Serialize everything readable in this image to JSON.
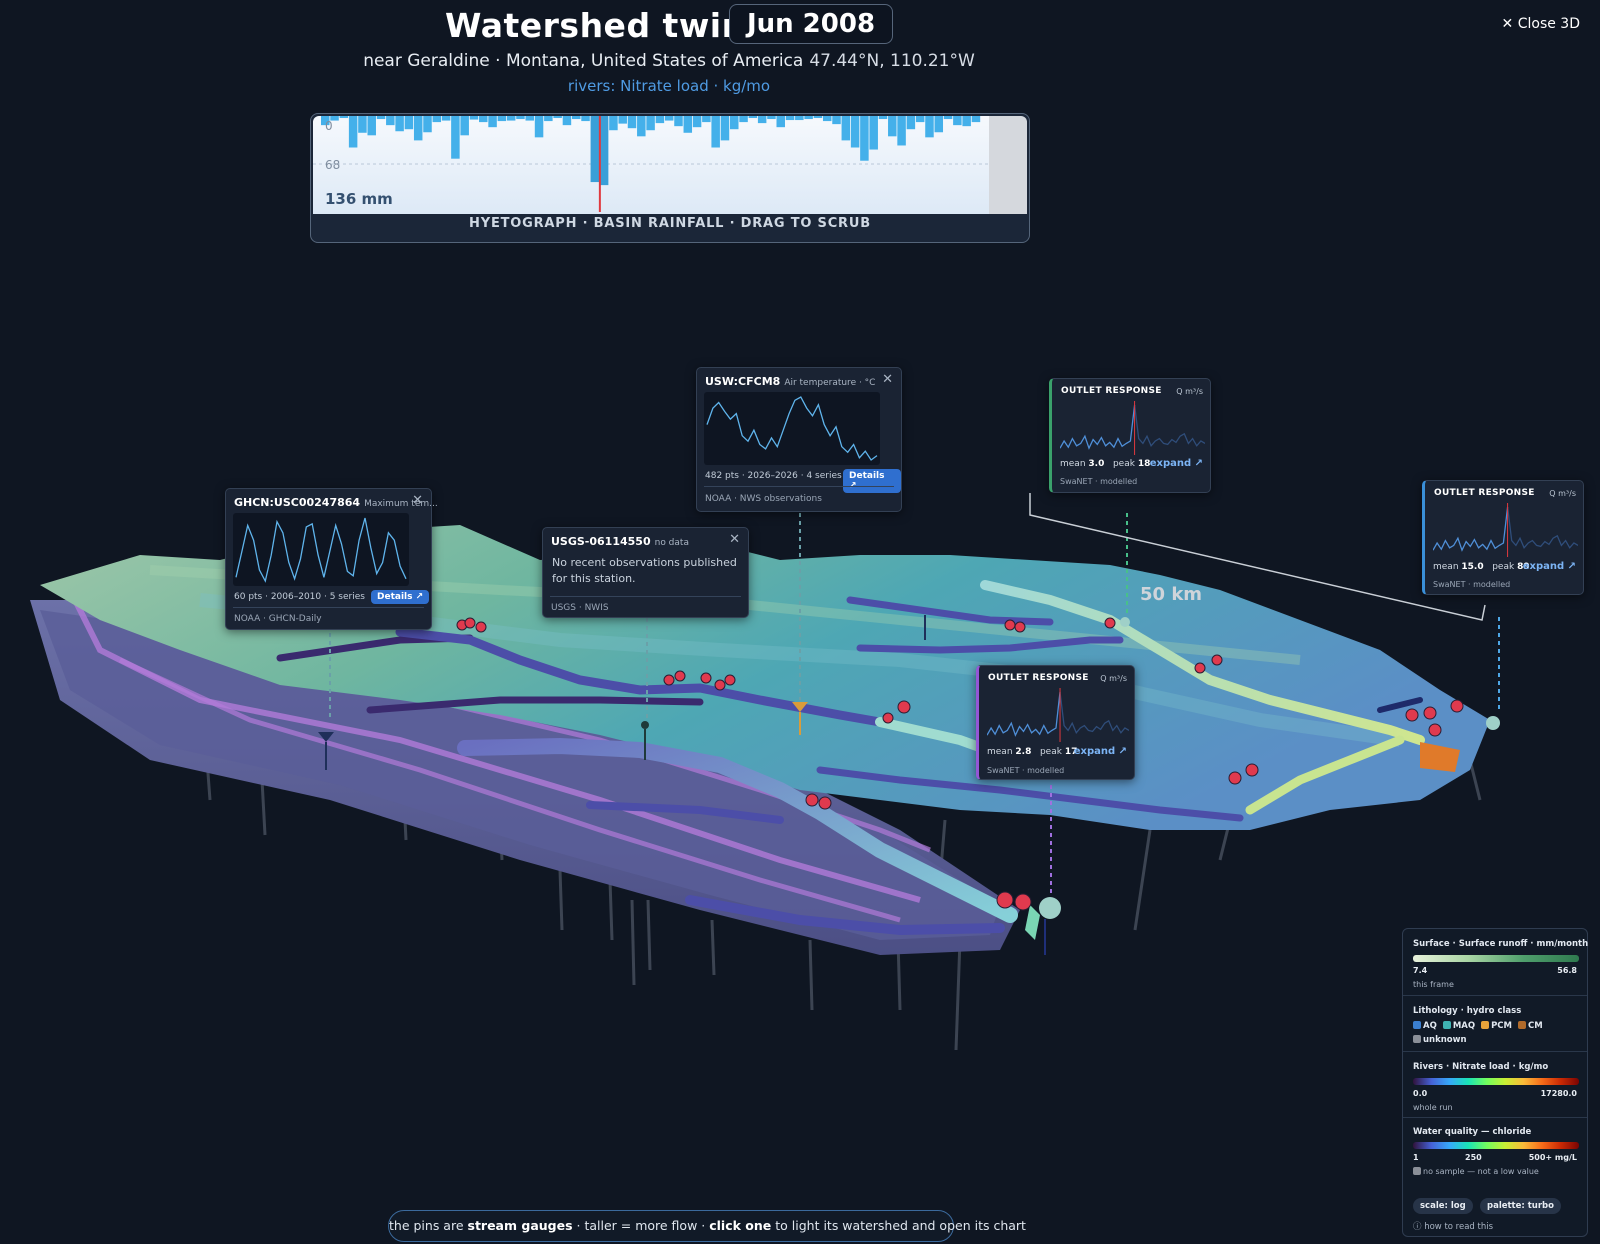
{
  "header": {
    "title": "Watershed twin",
    "date": "Jun 2008",
    "location": "near Geraldine · Montana, United States of America",
    "coords": "47.44°N, 110.21°W",
    "layer": "rivers: Nitrate load · kg/mo",
    "close_label": "✕ Close 3D"
  },
  "hyetograph": {
    "caption": "HYETOGRAPH · BASIN RAINFALL · DRAG TO SCRUB",
    "tick_top": "0",
    "tick_mid": "68",
    "max_label": "136 mm",
    "max_value": 136,
    "current_index": 29,
    "values": [
      18,
      9,
      4,
      62,
      33,
      38,
      6,
      18,
      30,
      26,
      48,
      32,
      12,
      9,
      84,
      38,
      7,
      12,
      22,
      10,
      9,
      6,
      9,
      42,
      10,
      4,
      18,
      6,
      10,
      130,
      136,
      28,
      15,
      24,
      40,
      28,
      14,
      9,
      20,
      33,
      22,
      12,
      62,
      48,
      26,
      12,
      4,
      14,
      6,
      22,
      8,
      8,
      6,
      4,
      10,
      16,
      48,
      62,
      88,
      66,
      6,
      40,
      58,
      26,
      12,
      42,
      32,
      6,
      18,
      20,
      12
    ]
  },
  "gauge_popups": [
    {
      "id": "GHCN:USC00247864",
      "subtitle": "Maximum tem...",
      "stats": "60 pts · 2006–2010 · 5 series",
      "details_label": "Details ↗",
      "source": "NOAA · GHCN-Daily",
      "chart_values": [
        10,
        45,
        80,
        60,
        20,
        5,
        40,
        85,
        70,
        30,
        8,
        35,
        78,
        82,
        40,
        10,
        45,
        80,
        55,
        18,
        12,
        60,
        90,
        50,
        15,
        30,
        70,
        60,
        25,
        8
      ]
    },
    {
      "id": "USGS-06114550",
      "subtitle": "no data",
      "message": "No recent observations published for this station.",
      "source": "USGS · NWIS"
    },
    {
      "id": "USW:CFCM8",
      "subtitle": "Air temperature · °C",
      "stats": "482 pts · 2026–2026 · 4 series",
      "details_label": "Details ↗",
      "source": "NOAA · NWS observations",
      "chart_values": [
        40,
        55,
        60,
        52,
        45,
        50,
        30,
        25,
        35,
        22,
        18,
        28,
        20,
        35,
        50,
        62,
        65,
        55,
        48,
        58,
        40,
        30,
        38,
        20,
        15,
        22,
        10,
        16,
        8,
        12
      ]
    }
  ],
  "outlet_popups": [
    {
      "title": "OUTLET RESPONSE",
      "unit": "Q m³/s",
      "mean": "3.0",
      "peak": "18",
      "expand_label": "expand ↗",
      "source": "SwaNET · modelled",
      "accent": "#3aa16b"
    },
    {
      "title": "OUTLET RESPONSE",
      "unit": "Q m³/s",
      "mean": "15.0",
      "peak": "89",
      "expand_label": "expand ↗",
      "source": "SwaNET · modelled",
      "accent": "#3a8fd8"
    },
    {
      "title": "OUTLET RESPONSE",
      "unit": "Q m³/s",
      "mean": "2.8",
      "peak": "17",
      "expand_label": "expand ↗",
      "source": "SwaNET · modelled",
      "accent": "#9457d6"
    }
  ],
  "outlet_labels": {
    "mean": "mean",
    "peak": "peak"
  },
  "scale_bar": "50 km",
  "legend": {
    "surface": {
      "title": "Surface · Surface runoff · mm/month",
      "lo": "7.4",
      "hi": "56.8",
      "note": "this frame"
    },
    "lithology": {
      "title": "Lithology · hydro class",
      "items": [
        {
          "label": "AQ",
          "color": "#3b7fd0"
        },
        {
          "label": "MAQ",
          "color": "#3fb3b3"
        },
        {
          "label": "PCM",
          "color": "#e6a23a"
        },
        {
          "label": "CM",
          "color": "#b06a2a"
        },
        {
          "label": "unknown",
          "color": "#8a8f98"
        }
      ]
    },
    "rivers": {
      "title": "Rivers · Nitrate load · kg/mo",
      "lo": "0.0",
      "hi": "17280.0",
      "note": "whole run"
    },
    "water_quality": {
      "title": "Water quality — chloride",
      "lo": "1",
      "mid": "250",
      "hi": "500+ mg/L",
      "note": "no sample — not a low value"
    },
    "scale_btn": "scale: log",
    "palette_btn": "palette: turbo",
    "help": "ⓘ how to read this"
  },
  "hint": {
    "pre": "the pins are ",
    "b1": "stream gauges",
    "mid": " · taller = more flow · ",
    "b2": "click one",
    "post": " to light its watershed and open its chart"
  }
}
